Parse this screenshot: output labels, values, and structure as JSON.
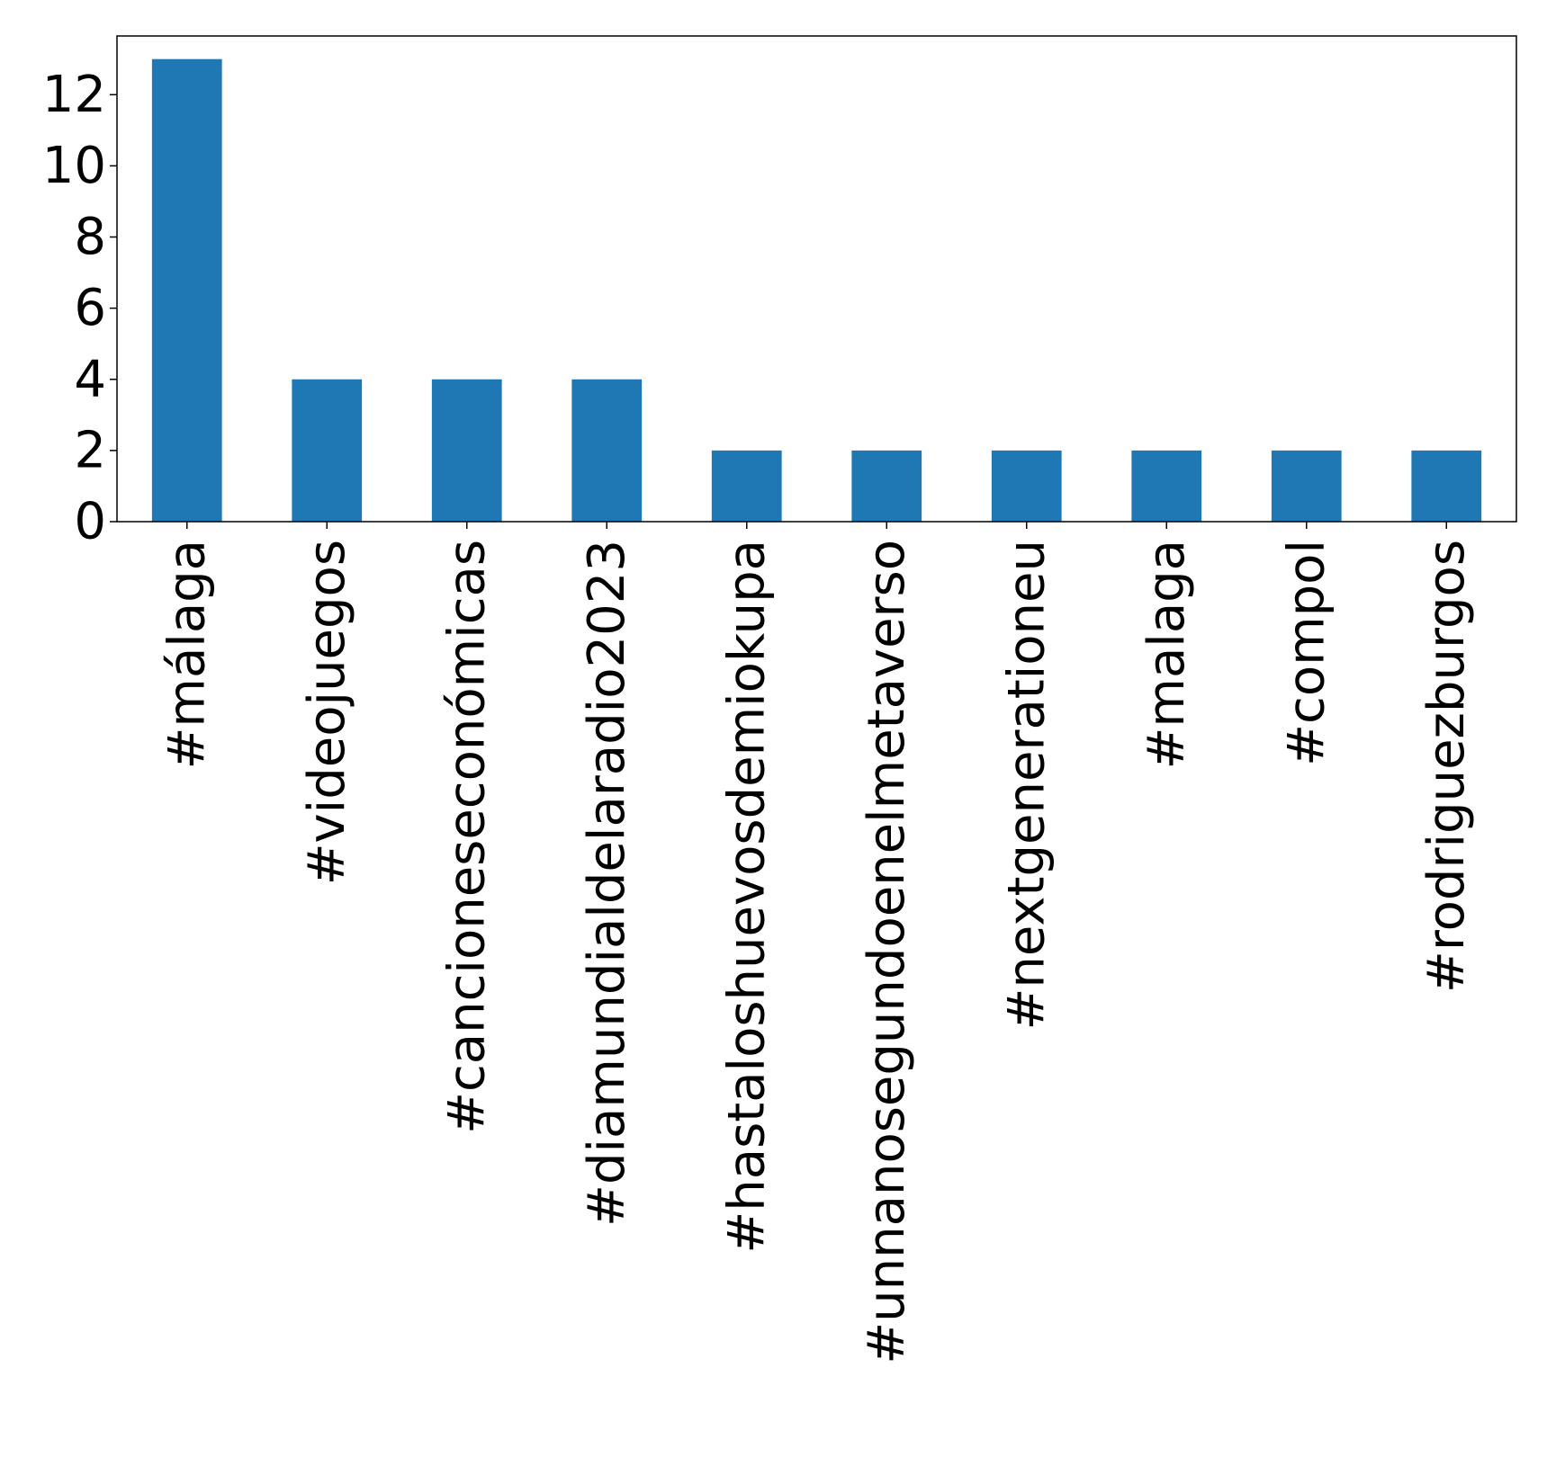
{
  "chart_data": {
    "type": "bar",
    "title": "",
    "xlabel": "",
    "ylabel": "",
    "categories": [
      "#málaga",
      "#videojuegos",
      "#cancioneseconómicas",
      "#diamundialdelaradio2023",
      "#hastaloshuevosdemiokupa",
      "#unnanosegundoenelmetaverso",
      "#nextgenerationeu",
      "#malaga",
      "#compol",
      "#rodriguezburgos"
    ],
    "values": [
      13,
      4,
      4,
      4,
      2,
      2,
      2,
      2,
      2,
      2
    ],
    "ylim": [
      0,
      13.65
    ],
    "yticks": [
      0,
      2,
      4,
      6,
      8,
      10,
      12
    ],
    "grid": false,
    "legend": false,
    "bar_color": "#1f77b4"
  }
}
